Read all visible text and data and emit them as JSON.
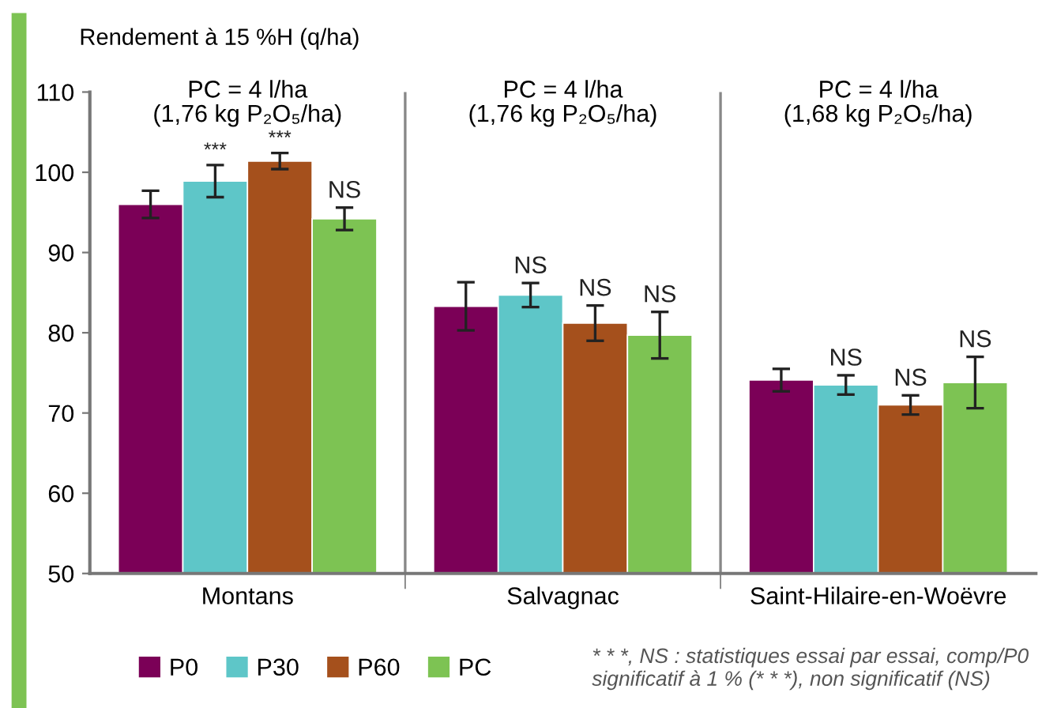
{
  "chart_data": {
    "type": "bar",
    "ylabel": "Rendement à 15 %H (q/ha)",
    "categories": [
      "Montans",
      "Salvagnac",
      "Saint-Hilaire-en-Woëvre"
    ],
    "series": [
      {
        "name": "P0",
        "color": "#7b0057",
        "values": [
          96.0,
          83.3,
          74.1
        ],
        "errors": [
          1.7,
          3.0,
          1.4
        ],
        "value_labels": [
          null,
          null,
          null
        ]
      },
      {
        "name": "P30",
        "color": "#5ec6c8",
        "values": [
          98.9,
          84.7,
          73.5
        ],
        "errors": [
          2.0,
          1.5,
          1.2
        ],
        "value_labels": [
          "***",
          "NS",
          "NS"
        ]
      },
      {
        "name": "P60",
        "color": "#a5501c",
        "values": [
          101.4,
          81.2,
          71.0
        ],
        "errors": [
          1.0,
          2.2,
          1.2
        ],
        "value_labels": [
          "***",
          "NS",
          "NS"
        ]
      },
      {
        "name": "PC",
        "color": "#7dc353",
        "values": [
          94.2,
          79.7,
          73.8
        ],
        "errors": [
          1.4,
          2.9,
          3.2
        ],
        "value_labels": [
          "NS",
          "NS",
          "NS"
        ]
      }
    ],
    "ylim": [
      50,
      110
    ],
    "yticks": [
      50,
      60,
      70,
      80,
      90,
      100,
      110
    ],
    "grid": "x",
    "legend": "bottom left",
    "annotations": [
      "PC = 4 l/ha\n(1,76 kg P₂O₅/ha)",
      "PC = 4 l/ha\n(1,76 kg P₂O₅/ha)",
      "PC = 4 l/ha\n(1,68 kg P₂O₅/ha)",
      "* * *, NS : statistiques essai par essai, comp/P0\nsignificatif à 1 % (* * *), non significatif (NS)"
    ]
  }
}
